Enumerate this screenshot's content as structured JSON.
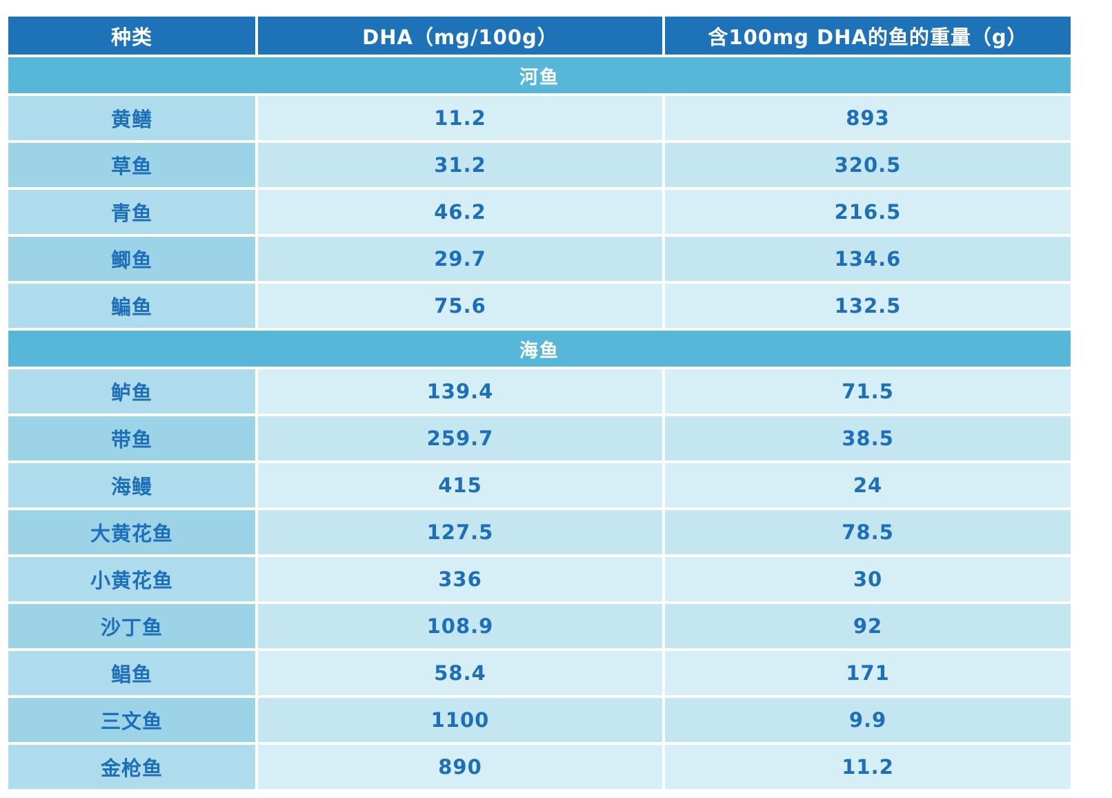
{
  "colors": {
    "header_bg": "#1e73b8",
    "header_text": "#ffffff",
    "section_bg": "#56b7d9",
    "section_text": "#ffffff",
    "row_name_bg_a": "#aedcec",
    "row_value_bg_a": "#d6eef6",
    "row_name_bg_b": "#9dd3e7",
    "row_value_bg_b": "#c3e6f1",
    "data_text": "#1c6fb8",
    "page_bg": "#ffffff"
  },
  "table": {
    "headers": [
      "种类",
      "DHA（mg/100g）",
      "含100mg DHA的鱼的重量（g）"
    ],
    "sections": [
      {
        "label": "河鱼",
        "rows": [
          [
            "黄鳝",
            "11.2",
            "893"
          ],
          [
            "草鱼",
            "31.2",
            "320.5"
          ],
          [
            "青鱼",
            "46.2",
            "216.5"
          ],
          [
            "鲫鱼",
            "29.7",
            "134.6"
          ],
          [
            "鳊鱼",
            "75.6",
            "132.5"
          ]
        ]
      },
      {
        "label": "海鱼",
        "rows": [
          [
            "鲈鱼",
            "139.4",
            "71.5"
          ],
          [
            "带鱼",
            "259.7",
            "38.5"
          ],
          [
            "海鳗",
            "415",
            "24"
          ],
          [
            "大黄花鱼",
            "127.5",
            "78.5"
          ],
          [
            "小黄花鱼",
            "336",
            "30"
          ],
          [
            "沙丁鱼",
            "108.9",
            "92"
          ],
          [
            "鲳鱼",
            "58.4",
            "171"
          ],
          [
            "三文鱼",
            "1100",
            "9.9"
          ],
          [
            "金枪鱼",
            "890",
            "11.2"
          ]
        ]
      }
    ]
  },
  "chart_data": {
    "type": "table",
    "columns": [
      "种类",
      "DHA（mg/100g）",
      "含100mg DHA的鱼的重量（g）"
    ],
    "groups": [
      {
        "group": "河鱼",
        "rows": [
          {
            "species": "黄鳝",
            "dha_mg_per_100g": 11.2,
            "grams_for_100mg_dha": 893
          },
          {
            "species": "草鱼",
            "dha_mg_per_100g": 31.2,
            "grams_for_100mg_dha": 320.5
          },
          {
            "species": "青鱼",
            "dha_mg_per_100g": 46.2,
            "grams_for_100mg_dha": 216.5
          },
          {
            "species": "鲫鱼",
            "dha_mg_per_100g": 29.7,
            "grams_for_100mg_dha": 134.6
          },
          {
            "species": "鳊鱼",
            "dha_mg_per_100g": 75.6,
            "grams_for_100mg_dha": 132.5
          }
        ]
      },
      {
        "group": "海鱼",
        "rows": [
          {
            "species": "鲈鱼",
            "dha_mg_per_100g": 139.4,
            "grams_for_100mg_dha": 71.5
          },
          {
            "species": "带鱼",
            "dha_mg_per_100g": 259.7,
            "grams_for_100mg_dha": 38.5
          },
          {
            "species": "海鳗",
            "dha_mg_per_100g": 415,
            "grams_for_100mg_dha": 24
          },
          {
            "species": "大黄花鱼",
            "dha_mg_per_100g": 127.5,
            "grams_for_100mg_dha": 78.5
          },
          {
            "species": "小黄花鱼",
            "dha_mg_per_100g": 336,
            "grams_for_100mg_dha": 30
          },
          {
            "species": "沙丁鱼",
            "dha_mg_per_100g": 108.9,
            "grams_for_100mg_dha": 92
          },
          {
            "species": "鲳鱼",
            "dha_mg_per_100g": 58.4,
            "grams_for_100mg_dha": 171
          },
          {
            "species": "三文鱼",
            "dha_mg_per_100g": 1100,
            "grams_for_100mg_dha": 9.9
          },
          {
            "species": "金枪鱼",
            "dha_mg_per_100g": 890,
            "grams_for_100mg_dha": 11.2
          }
        ]
      }
    ]
  }
}
